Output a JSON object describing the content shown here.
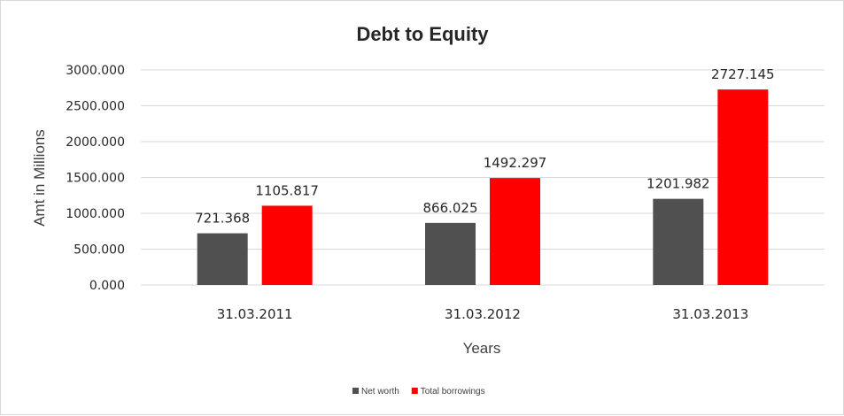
{
  "chart_data": {
    "type": "bar",
    "title": "Debt to Equity",
    "xlabel": "Years",
    "ylabel": "Amt in Millions",
    "categories": [
      "31.03.2011",
      "31.03.2012",
      "31.03.2013"
    ],
    "series": [
      {
        "name": "Net worth",
        "values": [
          721.368,
          866.025,
          1201.982
        ],
        "color": "#505050"
      },
      {
        "name": "Total borrowings",
        "values": [
          1105.817,
          1492.297,
          2727.145
        ],
        "color": "#ff0000"
      }
    ],
    "ylim": [
      0,
      3000
    ],
    "yticks": [
      "0.000",
      "500.000",
      "1000.000",
      "1500.000",
      "2000.000",
      "2500.000",
      "3000.000"
    ],
    "data_labels": [
      [
        "721.368",
        "866.025",
        "1201.982"
      ],
      [
        "1105.817",
        "1492.297",
        "2727.145"
      ]
    ],
    "grid": true,
    "legend_position": "bottom"
  }
}
